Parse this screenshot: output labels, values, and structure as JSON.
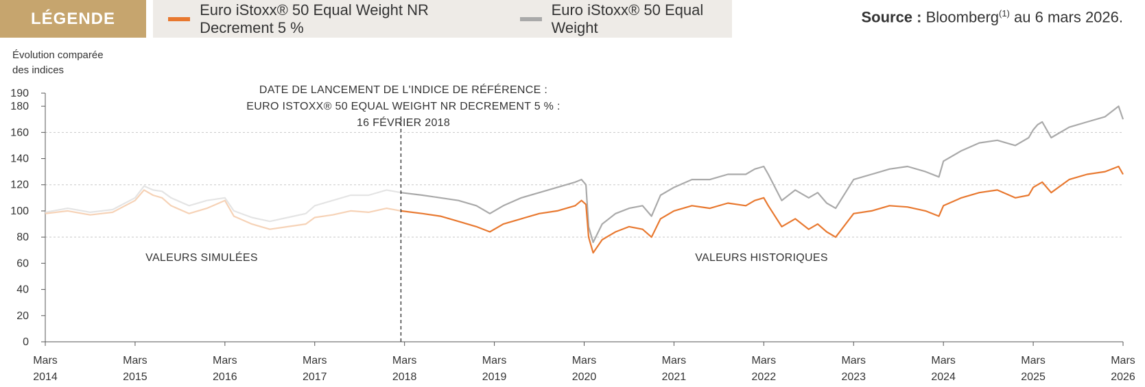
{
  "legend": {
    "title": "LÉGENDE",
    "series1": "Euro iStoxx® 50 Equal Weight NR Decrement 5 %",
    "series2": "Euro iStoxx® 50 Equal Weight"
  },
  "source": {
    "bold": "Source :",
    "text": "Bloomberg",
    "sup": "(1)",
    "suffix": "au 6 mars 2026."
  },
  "y_title": {
    "line1": "Évolution comparée",
    "line2": "des indices"
  },
  "chart_data": {
    "type": "line",
    "title": "",
    "ylabel": "Évolution comparée des indices",
    "xlabel": "",
    "ylim": [
      0,
      190
    ],
    "yticks": [
      0,
      20,
      40,
      60,
      80,
      100,
      120,
      140,
      160,
      180,
      190
    ],
    "xlim": [
      2014.0,
      2026.0
    ],
    "xticks": [
      {
        "x": 2014,
        "month": "Mars",
        "year": "2014"
      },
      {
        "x": 2015,
        "month": "Mars",
        "year": "2015"
      },
      {
        "x": 2016,
        "month": "Mars",
        "year": "2016"
      },
      {
        "x": 2017,
        "month": "Mars",
        "year": "2017"
      },
      {
        "x": 2018,
        "month": "Mars",
        "year": "2018"
      },
      {
        "x": 2019,
        "month": "Mars",
        "year": "2019"
      },
      {
        "x": 2020,
        "month": "Mars",
        "year": "2020"
      },
      {
        "x": 2021,
        "month": "Mars",
        "year": "2021"
      },
      {
        "x": 2022,
        "month": "Mars",
        "year": "2022"
      },
      {
        "x": 2023,
        "month": "Mars",
        "year": "2023"
      },
      {
        "x": 2024,
        "month": "Mars",
        "year": "2024"
      },
      {
        "x": 2025,
        "month": "Mars",
        "year": "2025"
      },
      {
        "x": 2026,
        "month": "Mars",
        "year": "2026"
      }
    ],
    "gridlines": [
      80,
      120,
      160
    ],
    "launch": {
      "x": 2017.96,
      "line1": "DATE DE LANCEMENT DE L'INDICE DE RÉFÉRENCE :",
      "line2": "EURO ISTOXX® 50 EQUAL WEIGHT NR DECREMENT 5 % :",
      "line3": "16 FÉVRIER 2018"
    },
    "annotations": {
      "simulated": "VALEURS SIMULÉES",
      "historical": "VALEURS HISTORIQUES"
    },
    "colors": {
      "series1": "#e8782f",
      "series1_simulated": "#f6d2b6",
      "series2": "#a9a9a9",
      "series2_simulated": "#e4e4e4",
      "grid": "#c8c8c8",
      "axis": "#555555"
    },
    "series": [
      {
        "name": "Euro iStoxx® 50 Equal Weight NR Decrement 5 %",
        "x": [
          2014.0,
          2014.25,
          2014.5,
          2014.75,
          2015.0,
          2015.1,
          2015.2,
          2015.3,
          2015.4,
          2015.6,
          2015.8,
          2016.0,
          2016.1,
          2016.3,
          2016.5,
          2016.7,
          2016.9,
          2017.0,
          2017.2,
          2017.4,
          2017.6,
          2017.8,
          2017.96,
          2018.2,
          2018.4,
          2018.6,
          2018.8,
          2018.95,
          2019.1,
          2019.3,
          2019.5,
          2019.7,
          2019.9,
          2019.97,
          2020.02,
          2020.05,
          2020.1,
          2020.2,
          2020.35,
          2020.5,
          2020.65,
          2020.75,
          2020.85,
          2021.0,
          2021.2,
          2021.4,
          2021.6,
          2021.8,
          2021.9,
          2022.0,
          2022.05,
          2022.2,
          2022.35,
          2022.5,
          2022.6,
          2022.7,
          2022.8,
          2023.0,
          2023.2,
          2023.4,
          2023.6,
          2023.8,
          2023.95,
          2024.0,
          2024.2,
          2024.4,
          2024.6,
          2024.8,
          2024.95,
          2025.0,
          2025.05,
          2025.1,
          2025.2,
          2025.4,
          2025.6,
          2025.8,
          2025.95,
          2026.0
        ],
        "values": [
          98,
          100,
          97,
          99,
          108,
          116,
          112,
          110,
          104,
          98,
          102,
          108,
          96,
          90,
          86,
          88,
          90,
          95,
          97,
          100,
          99,
          102,
          100,
          98,
          96,
          92,
          88,
          84,
          90,
          94,
          98,
          100,
          104,
          108,
          105,
          80,
          68,
          78,
          84,
          88,
          86,
          80,
          94,
          100,
          104,
          102,
          106,
          104,
          108,
          110,
          104,
          88,
          94,
          86,
          90,
          84,
          80,
          98,
          100,
          104,
          103,
          100,
          96,
          104,
          110,
          114,
          116,
          110,
          112,
          118,
          120,
          122,
          114,
          124,
          128,
          130,
          134,
          128
        ]
      },
      {
        "name": "Euro iStoxx® 50 Equal Weight",
        "x": [
          2014.0,
          2014.25,
          2014.5,
          2014.75,
          2015.0,
          2015.1,
          2015.2,
          2015.3,
          2015.4,
          2015.6,
          2015.8,
          2016.0,
          2016.1,
          2016.3,
          2016.5,
          2016.7,
          2016.9,
          2017.0,
          2017.2,
          2017.4,
          2017.6,
          2017.8,
          2017.96,
          2018.2,
          2018.4,
          2018.6,
          2018.8,
          2018.95,
          2019.1,
          2019.3,
          2019.5,
          2019.7,
          2019.9,
          2019.97,
          2020.02,
          2020.05,
          2020.1,
          2020.2,
          2020.35,
          2020.5,
          2020.65,
          2020.75,
          2020.85,
          2021.0,
          2021.2,
          2021.4,
          2021.6,
          2021.8,
          2021.9,
          2022.0,
          2022.05,
          2022.2,
          2022.35,
          2022.5,
          2022.6,
          2022.7,
          2022.8,
          2023.0,
          2023.2,
          2023.4,
          2023.6,
          2023.8,
          2023.95,
          2024.0,
          2024.2,
          2024.4,
          2024.6,
          2024.8,
          2024.95,
          2025.0,
          2025.05,
          2025.1,
          2025.2,
          2025.4,
          2025.6,
          2025.8,
          2025.95,
          2026.0
        ],
        "values": [
          99,
          102,
          99,
          101,
          110,
          119,
          116,
          115,
          110,
          104,
          108,
          110,
          100,
          95,
          92,
          95,
          98,
          104,
          108,
          112,
          112,
          116,
          114,
          112,
          110,
          108,
          104,
          98,
          104,
          110,
          114,
          118,
          122,
          124,
          120,
          88,
          76,
          90,
          98,
          102,
          104,
          96,
          112,
          118,
          124,
          124,
          128,
          128,
          132,
          134,
          128,
          108,
          116,
          110,
          114,
          106,
          102,
          124,
          128,
          132,
          134,
          130,
          126,
          138,
          146,
          152,
          154,
          150,
          156,
          162,
          166,
          168,
          156,
          164,
          168,
          172,
          180,
          170
        ]
      }
    ]
  }
}
